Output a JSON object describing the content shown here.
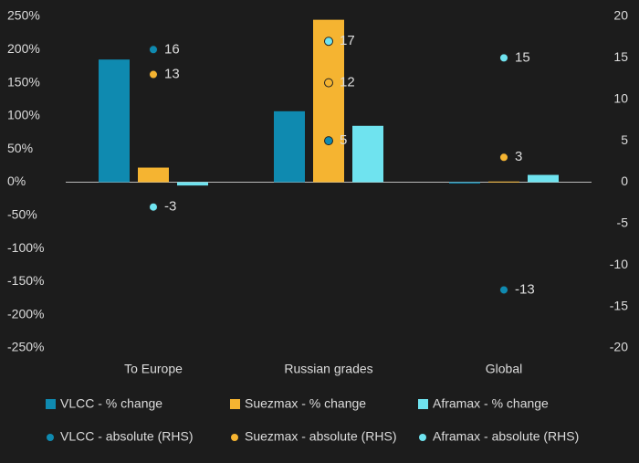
{
  "chart_data": {
    "type": "bar",
    "categories": [
      "To Europe",
      "Russian grades",
      "Global"
    ],
    "series": [
      {
        "name": "VLCC - % change",
        "type": "bar",
        "color": "#0f8ab0",
        "values": [
          185,
          107,
          -2
        ]
      },
      {
        "name": "Suezmax - % change",
        "type": "bar",
        "color": "#f5b431",
        "values": [
          22,
          245,
          1
        ]
      },
      {
        "name": "Aframax - % change",
        "type": "bar",
        "color": "#6fe3ef",
        "values": [
          -5,
          85,
          11
        ]
      },
      {
        "name": "VLCC - absolute (RHS)",
        "type": "scatter",
        "axis": "y2",
        "color": "#0f8ab0",
        "values": [
          16,
          5,
          -13
        ]
      },
      {
        "name": "Suezmax - absolute (RHS)",
        "type": "scatter",
        "axis": "y2",
        "color": "#f5b431",
        "values": [
          13,
          12,
          3
        ]
      },
      {
        "name": "Aframax - absolute (RHS)",
        "type": "scatter",
        "axis": "y2",
        "color": "#6fe3ef",
        "values": [
          -3,
          17,
          15
        ]
      }
    ],
    "ylim": [
      -250,
      250
    ],
    "yticks": [
      {
        "value": -250,
        "label": "-250%"
      },
      {
        "value": -200,
        "label": "-200%"
      },
      {
        "value": -150,
        "label": "-150%"
      },
      {
        "value": -100,
        "label": "-100%"
      },
      {
        "value": -50,
        "label": "-50%"
      },
      {
        "value": 0,
        "label": "0%"
      },
      {
        "value": 50,
        "label": "50%"
      },
      {
        "value": 100,
        "label": "100%"
      },
      {
        "value": 150,
        "label": "150%"
      },
      {
        "value": 200,
        "label": "200%"
      },
      {
        "value": 250,
        "label": "250%"
      }
    ],
    "y2lim": [
      -20,
      20
    ],
    "y2ticks": [
      -20,
      -15,
      -10,
      -5,
      0,
      5,
      10,
      15,
      20
    ]
  }
}
